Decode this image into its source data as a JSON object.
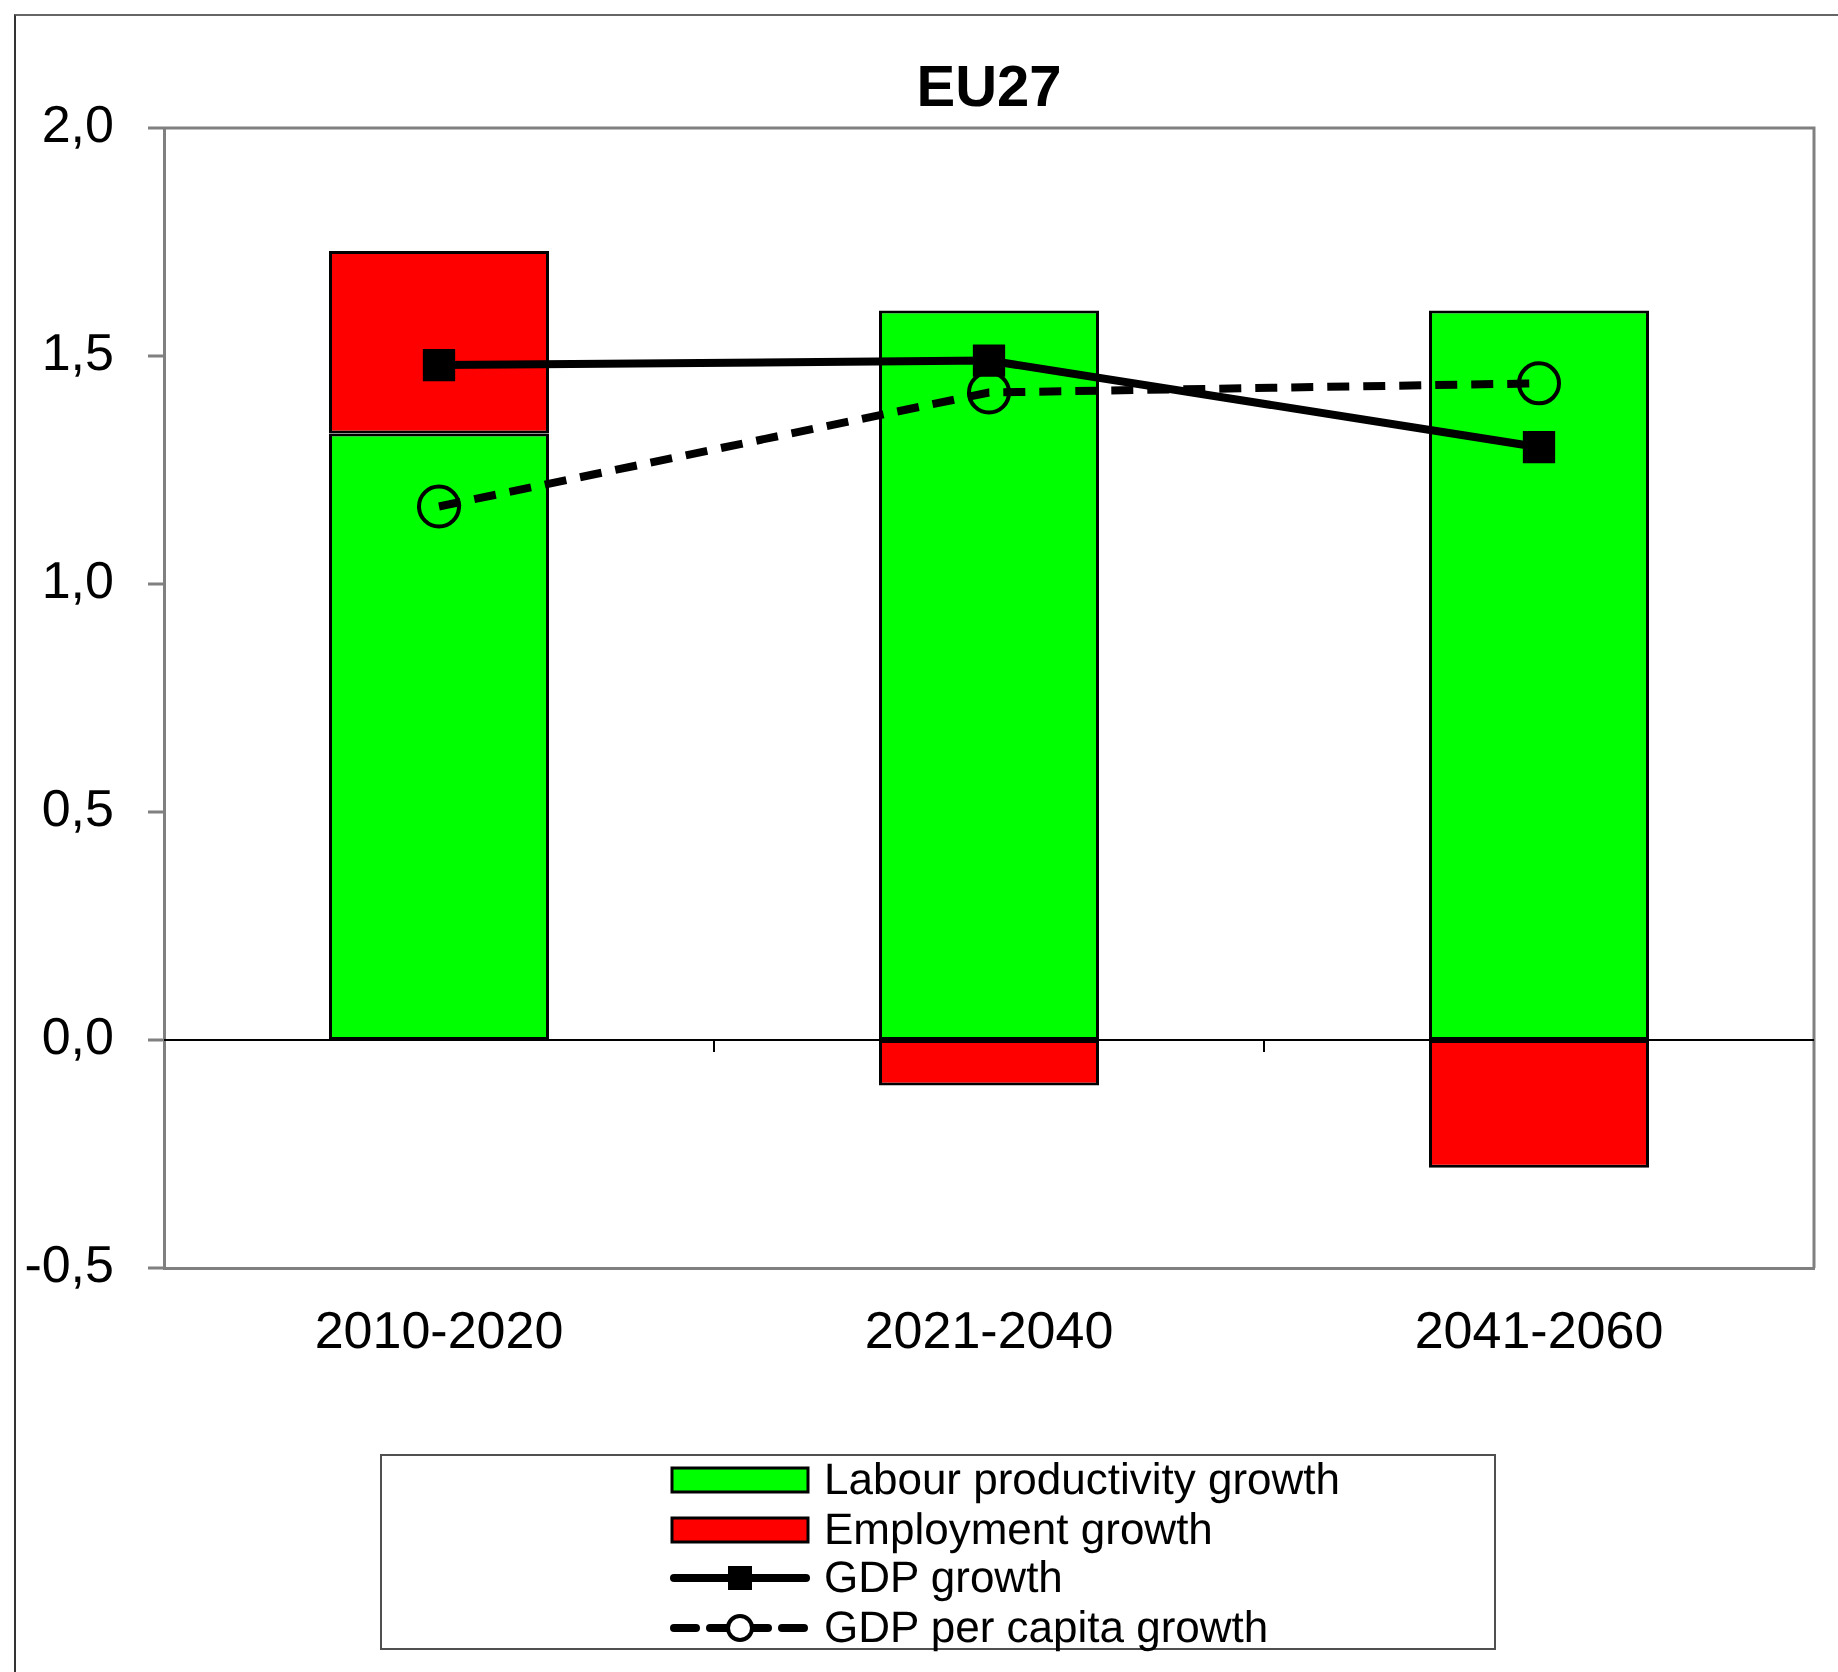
{
  "chart_data": {
    "type": "bar",
    "title": "EU27",
    "stacked": true,
    "grid": false,
    "legend": "bottom",
    "categories": [
      "2010-2020",
      "2021-2040",
      "2041-2060"
    ],
    "ylim": [
      -0.5,
      2
    ],
    "yticks": [
      {
        "value": -0.5,
        "label": "-0,5"
      },
      {
        "value": 0,
        "label": "0,0"
      },
      {
        "value": 0.5,
        "label": "0,5"
      },
      {
        "value": 1,
        "label": "1,0"
      },
      {
        "value": 1.5,
        "label": "1,5"
      },
      {
        "value": 2,
        "label": "2,0"
      }
    ],
    "ref_lines": [
      {
        "axis": "y",
        "value": 0,
        "color": "#000000"
      }
    ],
    "series": [
      {
        "name": "Labour productivity growth",
        "color": "#00ff00",
        "values": [
          1.33,
          1.6,
          1.6
        ]
      },
      {
        "name": "Employment growth",
        "color": "#ff0000",
        "values": [
          0.4,
          -0.1,
          -0.28
        ]
      },
      {
        "name": "GDP growth",
        "type": "line",
        "color": "#000000",
        "values": [
          1.48,
          1.49,
          1.3
        ],
        "marker": "square",
        "line_style": "solid"
      },
      {
        "name": "GDP per capita growth",
        "type": "line",
        "color": "#000000",
        "values": [
          1.17,
          1.42,
          1.44
        ],
        "marker": "circle",
        "line_style": "dashed"
      }
    ]
  }
}
